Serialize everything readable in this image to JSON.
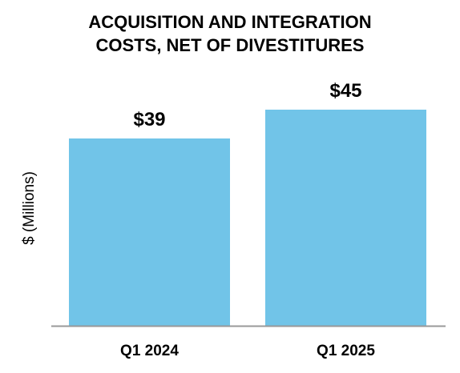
{
  "chart_data": {
    "type": "bar",
    "title_lines": [
      "ACQUISITION AND INTEGRATION",
      "COSTS, NET OF DIVESTITURES"
    ],
    "ylabel": "$ (Millions)",
    "xlabel": "",
    "categories": [
      "Q1 2024",
      "Q1 2025"
    ],
    "values": [
      39,
      45
    ],
    "data_labels": [
      "$39",
      "$45"
    ],
    "ylim": [
      0,
      45
    ],
    "grid": false,
    "legend": "none",
    "colors": {
      "bar": "#71C4E8",
      "axis": "#999999",
      "text": "#000000"
    }
  }
}
